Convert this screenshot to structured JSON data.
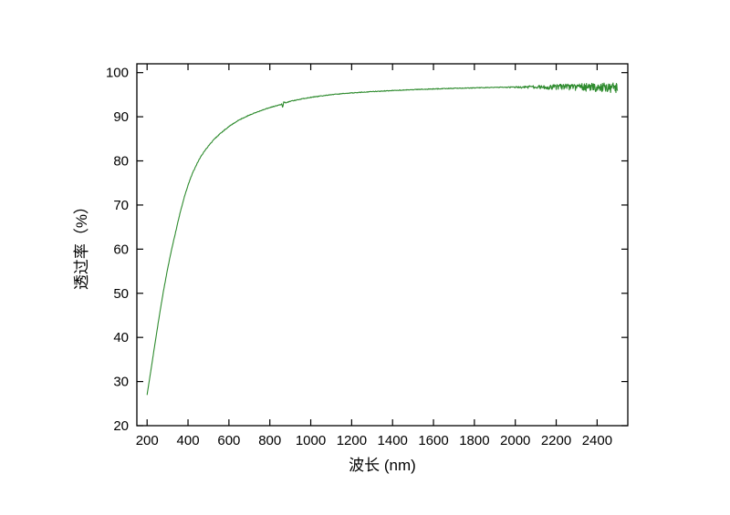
{
  "figure": {
    "background": "#ffffff"
  },
  "chart_data": {
    "type": "line",
    "title": "",
    "xlabel": "波长 (nm)",
    "ylabel": "透过率（%）",
    "xlim": [
      150,
      2550
    ],
    "ylim": [
      20,
      102
    ],
    "xticks": [
      200,
      400,
      600,
      800,
      1000,
      1200,
      1400,
      1600,
      1800,
      2000,
      2200,
      2400
    ],
    "yticks": [
      20,
      30,
      40,
      50,
      60,
      70,
      80,
      90,
      100
    ],
    "grid": false,
    "legend": "none",
    "axis_color": "#000000",
    "line_color": "#2e8b2e",
    "series": [
      {
        "name": "transmittance",
        "x": [
          200,
          220,
          240,
          260,
          280,
          300,
          320,
          340,
          360,
          380,
          400,
          420,
          440,
          460,
          480,
          500,
          530,
          560,
          600,
          650,
          700,
          750,
          800,
          850,
          858,
          863,
          868,
          880,
          900,
          950,
          1000,
          1100,
          1200,
          1300,
          1400,
          1500,
          1600,
          1700,
          1800,
          1900,
          2000,
          2100,
          2200,
          2300,
          2400,
          2500
        ],
        "y": [
          27,
          33,
          39,
          45,
          50.5,
          55.5,
          60,
          64,
          68,
          71.5,
          74.5,
          77,
          79,
          80.8,
          82.2,
          83.4,
          85,
          86.3,
          87.8,
          89.3,
          90.4,
          91.3,
          92.1,
          92.7,
          92.9,
          92.1,
          93.3,
          93.2,
          93.5,
          94,
          94.4,
          95,
          95.4,
          95.7,
          95.95,
          96.15,
          96.3,
          96.45,
          96.55,
          96.65,
          96.7,
          96.75,
          96.75,
          96.7,
          96.6,
          96.5
        ]
      }
    ],
    "noise": {
      "base_amplitude": 0.08,
      "high_wavelength_start": 1950,
      "max_amplitude": 1.15
    }
  }
}
